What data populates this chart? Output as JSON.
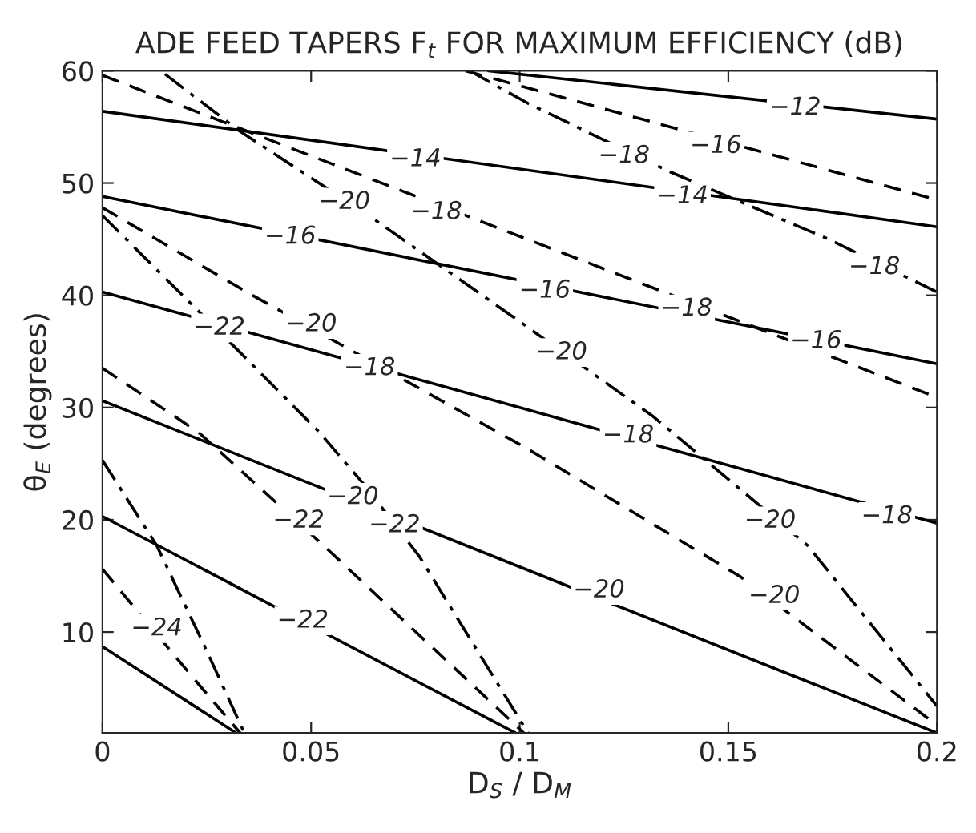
{
  "chart_data": {
    "type": "line",
    "title": "ADE FEED TAPERS F$_{t}$ FOR MAXIMUM EFFICIENCY (dB)",
    "xlabel": "D$_{S}$ / D$_{M}$",
    "ylabel": "θ$_{E}$ (degrees)",
    "xlim": [
      0,
      0.2
    ],
    "ylim": [
      1,
      60
    ],
    "xticks": [
      0,
      0.05,
      0.1,
      0.15,
      0.2
    ],
    "yticks": [
      10,
      20,
      30,
      40,
      50,
      60
    ],
    "grid": false,
    "legend": false,
    "marker": "none",
    "series": [
      {
        "color": "#000000",
        "line_style": "solid",
        "x": [
          0.0925,
          0.2
        ],
        "values": [
          60,
          55.7
        ]
      },
      {
        "color": "#000000",
        "line_style": "solid",
        "x": [
          0,
          0.2
        ],
        "values": [
          56.4,
          46.1
        ]
      },
      {
        "color": "#000000",
        "line_style": "solid",
        "x": [
          0,
          0.2
        ],
        "values": [
          48.8,
          33.9
        ]
      },
      {
        "color": "#000000",
        "line_style": "solid",
        "x": [
          0,
          0.2
        ],
        "values": [
          40.3,
          19.7
        ]
      },
      {
        "color": "#000000",
        "line_style": "solid",
        "x": [
          0,
          0.2
        ],
        "values": [
          30.6,
          1
        ]
      },
      {
        "color": "#000000",
        "line_style": "solid",
        "x": [
          0,
          0.099
        ],
        "values": [
          20.3,
          1
        ]
      },
      {
        "color": "#000000",
        "line_style": "solid",
        "x": [
          0,
          0.032
        ],
        "values": [
          8.7,
          1
        ]
      },
      {
        "color": "#000000",
        "line_style": "dashed",
        "x": [
          0.087,
          0.2
        ],
        "values": [
          60,
          48.5
        ]
      },
      {
        "color": "#000000",
        "line_style": "dashed",
        "x": [
          0,
          0.2
        ],
        "values": [
          59.6,
          30.9
        ]
      },
      {
        "color": "#000000",
        "line_style": "dashed",
        "x": [
          0,
          0.035,
          0.102,
          0.153,
          0.2
        ],
        "values": [
          47.8,
          40.2,
          26.3,
          14.9,
          1.7
        ]
      },
      {
        "color": "#000000",
        "line_style": "dashed",
        "x": [
          0,
          0.023,
          0.053,
          0.101
        ],
        "values": [
          33.5,
          27.8,
          17.7,
          1
        ]
      },
      {
        "color": "#000000",
        "line_style": "dashed",
        "x": [
          0,
          0.022,
          0.033
        ],
        "values": [
          15.6,
          5.8,
          1
        ]
      },
      {
        "color": "#000000",
        "line_style": "dashdot",
        "x": [
          0.088,
          0.102,
          0.136,
          0.174,
          0.2
        ],
        "values": [
          60,
          57.1,
          51,
          45,
          40.3
        ]
      },
      {
        "color": "#000000",
        "line_style": "dashdot",
        "x": [
          0.015,
          0.033,
          0.065,
          0.101,
          0.132,
          0.169,
          0.2
        ],
        "values": [
          59.7,
          54.6,
          46.8,
          37.4,
          29.2,
          17.7,
          3.4
        ]
      },
      {
        "color": "#000000",
        "line_style": "dashdot",
        "x": [
          0,
          0.02,
          0.033,
          0.052,
          0.063,
          0.076,
          0.102
        ],
        "values": [
          47.1,
          39.7,
          34.9,
          27.8,
          23,
          16.7,
          1
        ]
      },
      {
        "color": "#000000",
        "line_style": "dashdot",
        "x": [
          0,
          0.013,
          0.024,
          0.034
        ],
        "values": [
          25.3,
          17.7,
          9.1,
          1
        ]
      }
    ],
    "annotations": [
      {
        "text": "−12",
        "x": 0.166,
        "y": 56.7
      },
      {
        "text": "−14",
        "x": 0.075,
        "y": 52.1
      },
      {
        "text": "−14",
        "x": 0.139,
        "y": 48.8
      },
      {
        "text": "−16",
        "x": 0.045,
        "y": 45.2
      },
      {
        "text": "−16",
        "x": 0.106,
        "y": 40.4
      },
      {
        "text": "−16",
        "x": 0.171,
        "y": 35.9
      },
      {
        "text": "−18",
        "x": 0.064,
        "y": 33.5
      },
      {
        "text": "−18",
        "x": 0.126,
        "y": 27.5
      },
      {
        "text": "−18",
        "x": 0.188,
        "y": 20.3
      },
      {
        "text": "−20",
        "x": 0.06,
        "y": 22
      },
      {
        "text": "−20",
        "x": 0.119,
        "y": 13.7
      },
      {
        "text": "−22",
        "x": 0.048,
        "y": 11
      },
      {
        "text": "−16",
        "x": 0.147,
        "y": 53.3
      },
      {
        "text": "−18",
        "x": 0.08,
        "y": 47.4
      },
      {
        "text": "−18",
        "x": 0.14,
        "y": 38.8
      },
      {
        "text": "−20",
        "x": 0.05,
        "y": 37.4
      },
      {
        "text": "−20",
        "x": 0.161,
        "y": 13.2
      },
      {
        "text": "−22",
        "x": 0.047,
        "y": 19.9
      },
      {
        "text": "−24",
        "x": 0.013,
        "y": 10.3
      },
      {
        "text": "−18",
        "x": 0.125,
        "y": 52.4
      },
      {
        "text": "−18",
        "x": 0.185,
        "y": 42.5
      },
      {
        "text": "−20",
        "x": 0.058,
        "y": 48.3
      },
      {
        "text": "−20",
        "x": 0.11,
        "y": 34.9
      },
      {
        "text": "−20",
        "x": 0.16,
        "y": 19.9
      },
      {
        "text": "−22",
        "x": 0.028,
        "y": 37.1
      },
      {
        "text": "−22",
        "x": 0.07,
        "y": 19.5
      }
    ]
  }
}
